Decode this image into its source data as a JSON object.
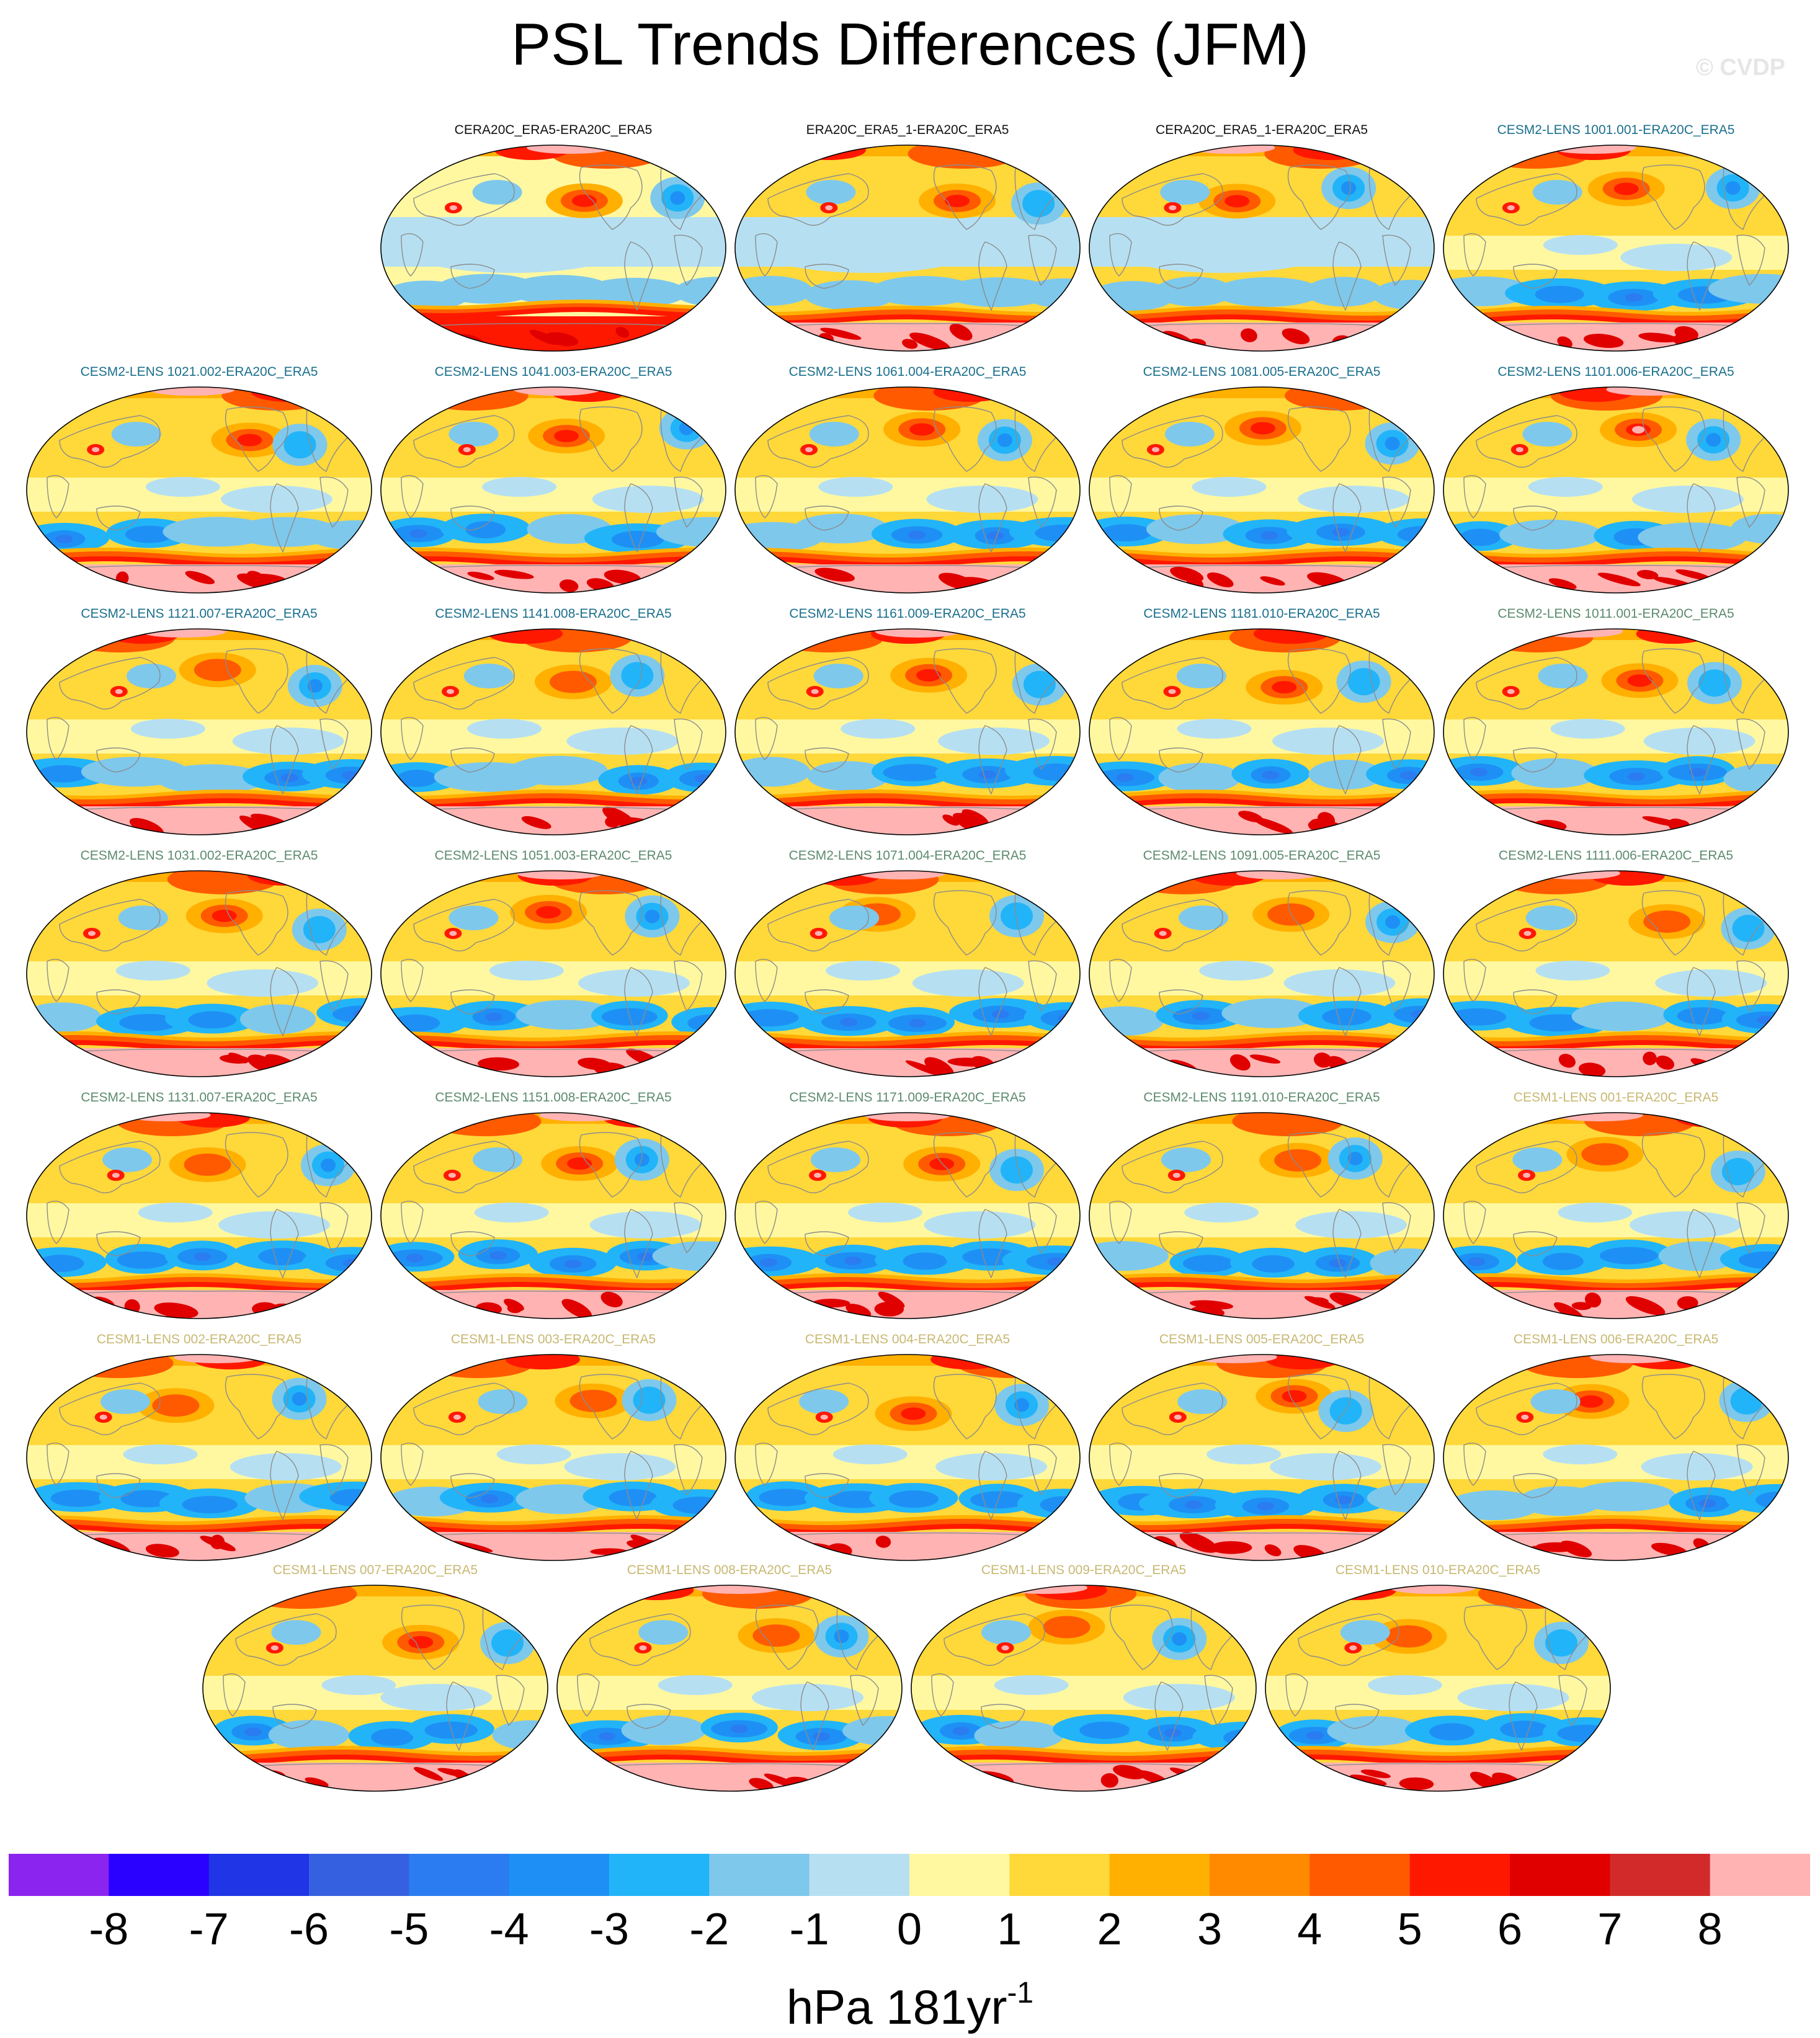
{
  "title": "PSL Trends Differences (JFM)",
  "credit": "© CVDP",
  "units": {
    "base": "hPa 181yr",
    "exponent": "-1"
  },
  "colors": {
    "label_reference": "#111111",
    "label_cesm2_smbb": "#1a6f8c",
    "label_cesm2_cmip6": "#5c8a6e",
    "label_cesm1": "#c8b872",
    "land_outline": "#8c8c8c"
  },
  "chart_data": {
    "type": "heatmap",
    "projection": "robinson",
    "title": "PSL Trends Differences (JFM)",
    "colorbar": {
      "tick_labels": [
        "-8",
        "-7",
        "-6",
        "-5",
        "-4",
        "-3",
        "-2",
        "-1",
        "0",
        "1",
        "2",
        "3",
        "4",
        "5",
        "6",
        "7",
        "8"
      ],
      "levels": [
        -8,
        -7,
        -6,
        -5,
        -4,
        -3,
        -2,
        -1,
        0,
        1,
        2,
        3,
        4,
        5,
        6,
        7,
        8
      ],
      "colors": [
        "#8c24f0",
        "#2a00ff",
        "#1f35e6",
        "#3560e0",
        "#2b7cf0",
        "#1e90f5",
        "#22b4f8",
        "#7ec8ec",
        "#b6e0f2",
        "#fff8a0",
        "#ffd83a",
        "#ffb000",
        "#ff8a00",
        "#ff5a00",
        "#ff1800",
        "#e00000",
        "#d22a2a",
        "#ffb3b3"
      ],
      "units": "hPa 181yr-1"
    },
    "panels": [
      {
        "label": "CERA20C_ERA5-ERA20C_ERA5",
        "group": "reference"
      },
      {
        "label": "ERA20C_ERA5_1-ERA20C_ERA5",
        "group": "reference"
      },
      {
        "label": "CERA20C_ERA5_1-ERA20C_ERA5",
        "group": "reference"
      },
      {
        "label": "CESM2-LENS 1001.001-ERA20C_ERA5",
        "group": "cesm2_smbb"
      },
      {
        "label": "CESM2-LENS 1021.002-ERA20C_ERA5",
        "group": "cesm2_smbb"
      },
      {
        "label": "CESM2-LENS 1041.003-ERA20C_ERA5",
        "group": "cesm2_smbb"
      },
      {
        "label": "CESM2-LENS 1061.004-ERA20C_ERA5",
        "group": "cesm2_smbb"
      },
      {
        "label": "CESM2-LENS 1081.005-ERA20C_ERA5",
        "group": "cesm2_smbb"
      },
      {
        "label": "CESM2-LENS 1101.006-ERA20C_ERA5",
        "group": "cesm2_smbb"
      },
      {
        "label": "CESM2-LENS 1121.007-ERA20C_ERA5",
        "group": "cesm2_smbb"
      },
      {
        "label": "CESM2-LENS 1141.008-ERA20C_ERA5",
        "group": "cesm2_smbb"
      },
      {
        "label": "CESM2-LENS 1161.009-ERA20C_ERA5",
        "group": "cesm2_smbb"
      },
      {
        "label": "CESM2-LENS 1181.010-ERA20C_ERA5",
        "group": "cesm2_smbb"
      },
      {
        "label": "CESM2-LENS 1011.001-ERA20C_ERA5",
        "group": "cesm2_cmip6"
      },
      {
        "label": "CESM2-LENS 1031.002-ERA20C_ERA5",
        "group": "cesm2_cmip6"
      },
      {
        "label": "CESM2-LENS 1051.003-ERA20C_ERA5",
        "group": "cesm2_cmip6"
      },
      {
        "label": "CESM2-LENS 1071.004-ERA20C_ERA5",
        "group": "cesm2_cmip6"
      },
      {
        "label": "CESM2-LENS 1091.005-ERA20C_ERA5",
        "group": "cesm2_cmip6"
      },
      {
        "label": "CESM2-LENS 1111.006-ERA20C_ERA5",
        "group": "cesm2_cmip6"
      },
      {
        "label": "CESM2-LENS 1131.007-ERA20C_ERA5",
        "group": "cesm2_cmip6"
      },
      {
        "label": "CESM2-LENS 1151.008-ERA20C_ERA5",
        "group": "cesm2_cmip6"
      },
      {
        "label": "CESM2-LENS 1171.009-ERA20C_ERA5",
        "group": "cesm2_cmip6"
      },
      {
        "label": "CESM2-LENS 1191.010-ERA20C_ERA5",
        "group": "cesm2_cmip6"
      },
      {
        "label": "CESM1-LENS 001-ERA20C_ERA5",
        "group": "cesm1"
      },
      {
        "label": "CESM1-LENS 002-ERA20C_ERA5",
        "group": "cesm1"
      },
      {
        "label": "CESM1-LENS 003-ERA20C_ERA5",
        "group": "cesm1"
      },
      {
        "label": "CESM1-LENS 004-ERA20C_ERA5",
        "group": "cesm1"
      },
      {
        "label": "CESM1-LENS 005-ERA20C_ERA5",
        "group": "cesm1"
      },
      {
        "label": "CESM1-LENS 006-ERA20C_ERA5",
        "group": "cesm1"
      },
      {
        "label": "CESM1-LENS 007-ERA20C_ERA5",
        "group": "cesm1"
      },
      {
        "label": "CESM1-LENS 008-ERA20C_ERA5",
        "group": "cesm1"
      },
      {
        "label": "CESM1-LENS 009-ERA20C_ERA5",
        "group": "cesm1"
      },
      {
        "label": "CESM1-LENS 010-ERA20C_ERA5",
        "group": "cesm1"
      }
    ]
  }
}
